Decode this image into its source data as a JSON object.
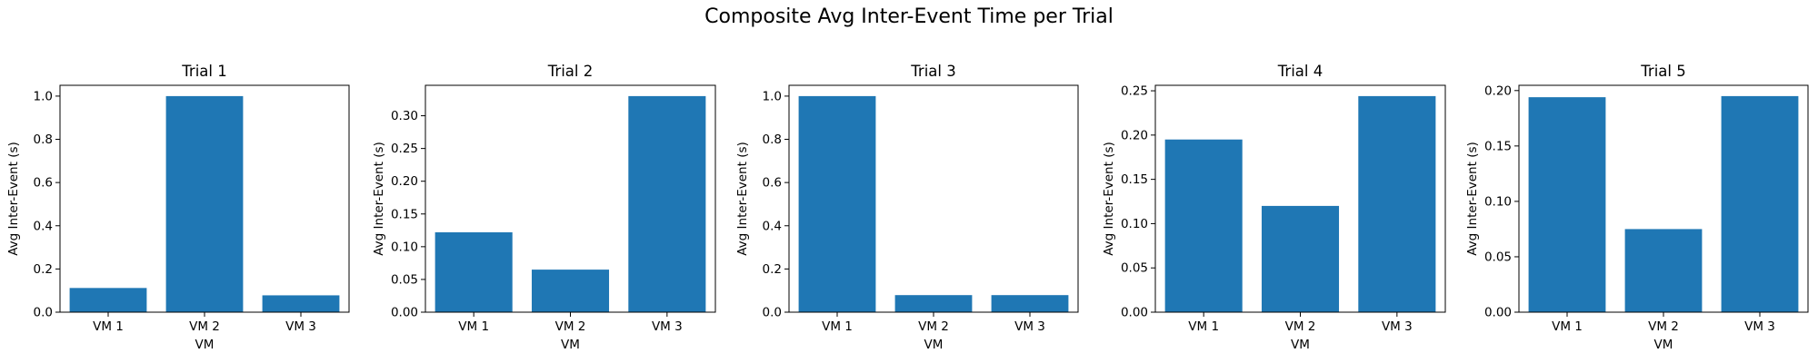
{
  "figure": {
    "title": "Composite Avg Inter-Event Time per Trial"
  },
  "colors": {
    "bar": "#1f77b4"
  },
  "chart_data": [
    {
      "type": "bar",
      "title": "Trial 1",
      "xlabel": "VM",
      "ylabel": "Avg Inter-Event (s)",
      "categories": [
        "VM 1",
        "VM 2",
        "VM 3"
      ],
      "values": [
        0.112,
        1.0,
        0.078
      ],
      "ylim": [
        0,
        1.05
      ],
      "yticks": [
        0.0,
        0.2,
        0.4,
        0.6,
        0.8,
        1.0
      ],
      "ytick_labels": [
        "0.0",
        "0.2",
        "0.4",
        "0.6",
        "0.8",
        "1.0"
      ]
    },
    {
      "type": "bar",
      "title": "Trial 2",
      "xlabel": "VM",
      "ylabel": "Avg Inter-Event (s)",
      "categories": [
        "VM 1",
        "VM 2",
        "VM 3"
      ],
      "values": [
        0.122,
        0.065,
        0.33
      ],
      "ylim": [
        0,
        0.3465
      ],
      "yticks": [
        0.0,
        0.05,
        0.1,
        0.15,
        0.2,
        0.25,
        0.3
      ],
      "ytick_labels": [
        "0.00",
        "0.05",
        "0.10",
        "0.15",
        "0.20",
        "0.25",
        "0.30"
      ]
    },
    {
      "type": "bar",
      "title": "Trial 3",
      "xlabel": "VM",
      "ylabel": "Avg Inter-Event (s)",
      "categories": [
        "VM 1",
        "VM 2",
        "VM 3"
      ],
      "values": [
        1.0,
        0.079,
        0.079
      ],
      "ylim": [
        0,
        1.05
      ],
      "yticks": [
        0.0,
        0.2,
        0.4,
        0.6,
        0.8,
        1.0
      ],
      "ytick_labels": [
        "0.0",
        "0.2",
        "0.4",
        "0.6",
        "0.8",
        "1.0"
      ]
    },
    {
      "type": "bar",
      "title": "Trial 4",
      "xlabel": "VM",
      "ylabel": "Avg Inter-Event (s)",
      "categories": [
        "VM 1",
        "VM 2",
        "VM 3"
      ],
      "values": [
        0.195,
        0.12,
        0.244
      ],
      "ylim": [
        0,
        0.2562
      ],
      "yticks": [
        0.0,
        0.05,
        0.1,
        0.15,
        0.2,
        0.25
      ],
      "ytick_labels": [
        "0.00",
        "0.05",
        "0.10",
        "0.15",
        "0.20",
        "0.25"
      ]
    },
    {
      "type": "bar",
      "title": "Trial 5",
      "xlabel": "VM",
      "ylabel": "Avg Inter-Event (s)",
      "categories": [
        "VM 1",
        "VM 2",
        "VM 3"
      ],
      "values": [
        0.194,
        0.075,
        0.195
      ],
      "ylim": [
        0,
        0.20475
      ],
      "yticks": [
        0.0,
        0.05,
        0.1,
        0.15,
        0.2
      ],
      "ytick_labels": [
        "0.00",
        "0.05",
        "0.10",
        "0.15",
        "0.20"
      ]
    }
  ]
}
